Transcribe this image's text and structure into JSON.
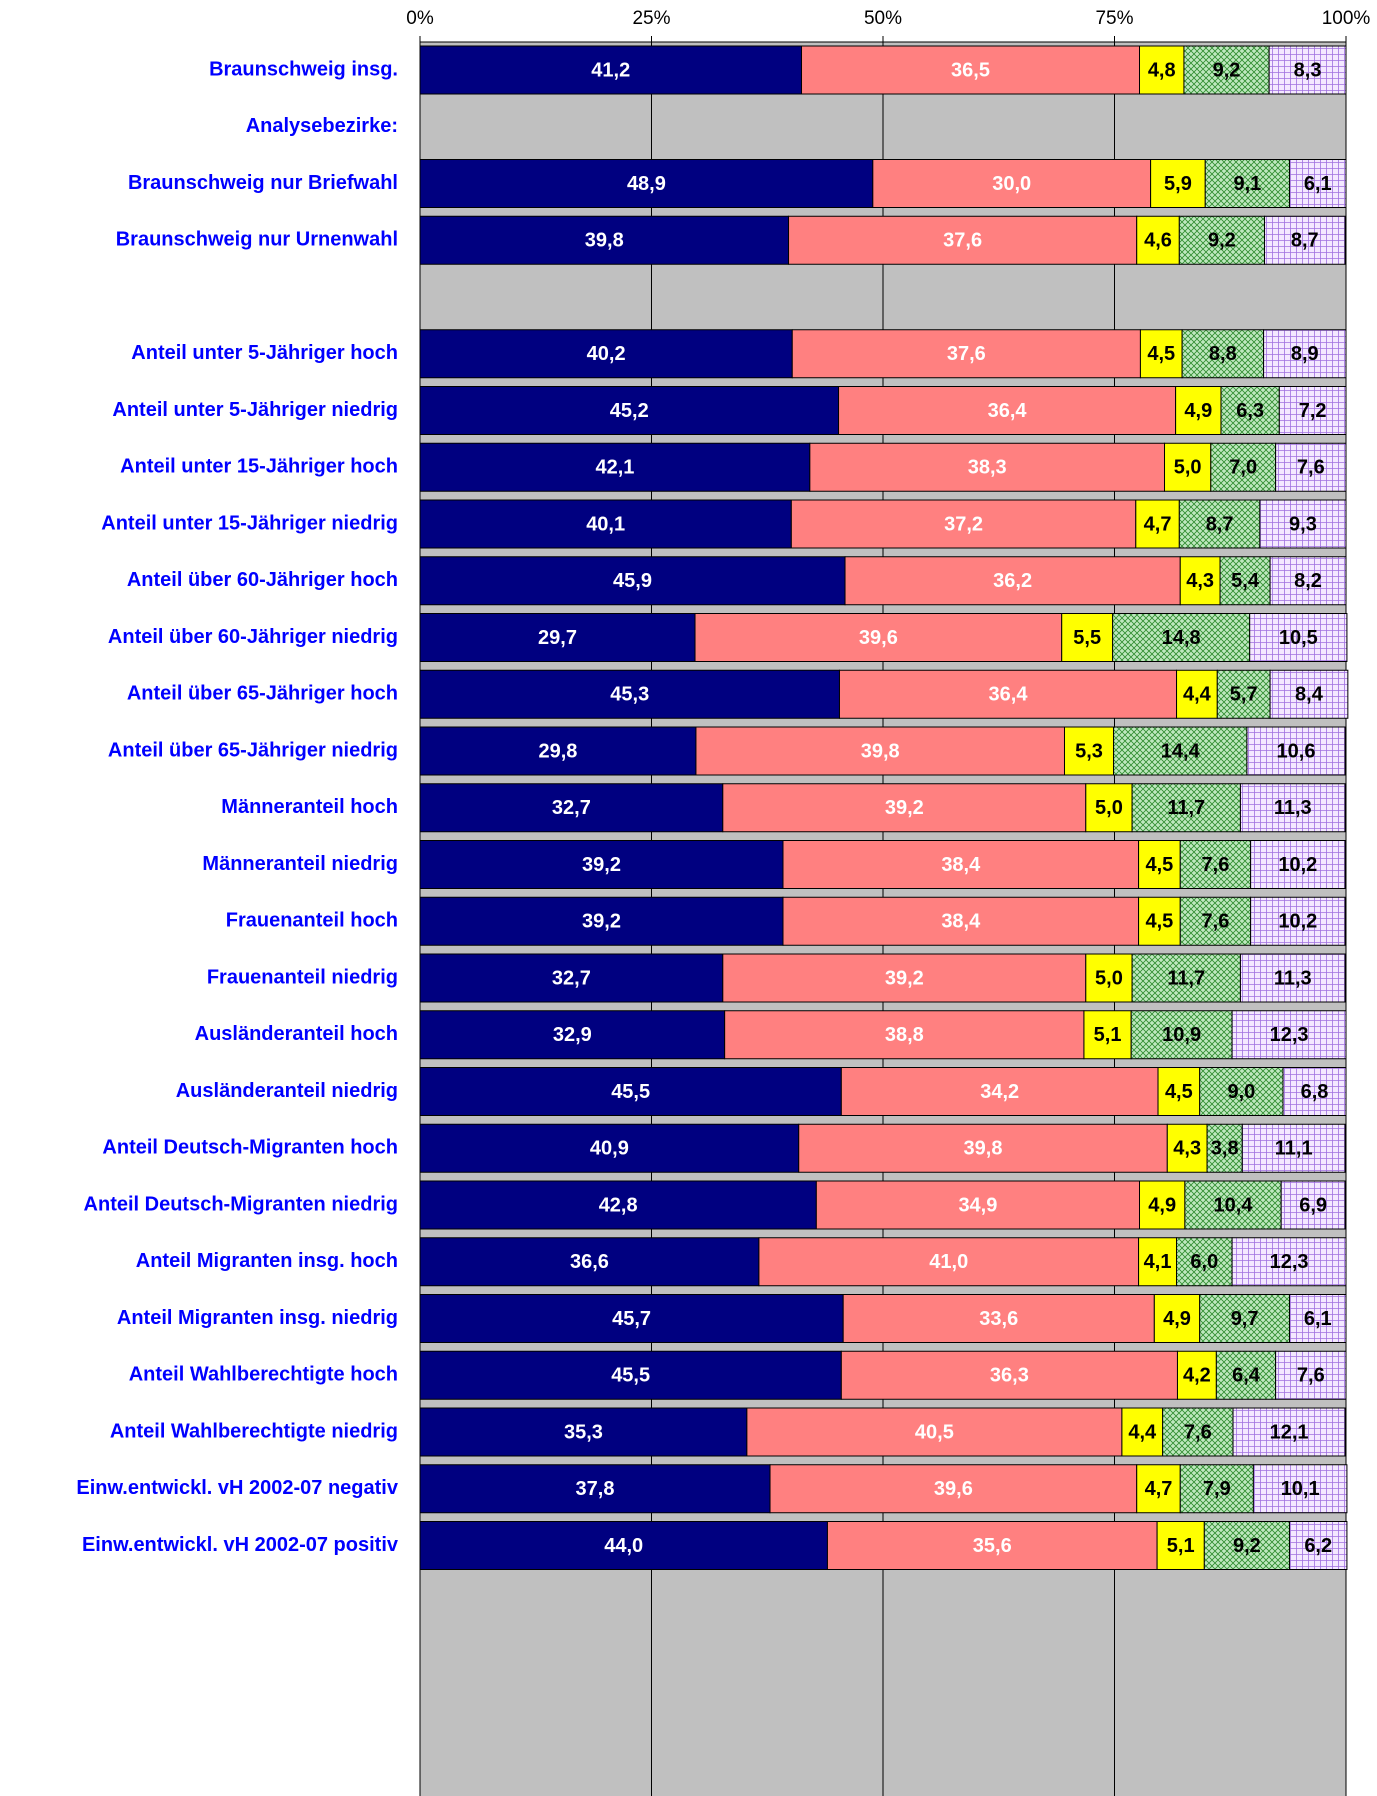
{
  "chart_data": {
    "type": "stacked_bar_horizontal",
    "categories": [
      "Braunschweig insg.",
      "Analysebezirke:",
      "Braunschweig nur Briefwahl",
      "Braunschweig nur Urnenwahl",
      null,
      "Anteil unter 5-Jähriger hoch",
      "Anteil unter 5-Jähriger niedrig",
      "Anteil unter 15-Jähriger hoch",
      "Anteil unter 15-Jähriger niedrig",
      "Anteil über 60-Jähriger hoch",
      "Anteil über 60-Jähriger niedrig",
      "Anteil über 65-Jähriger hoch",
      "Anteil über 65-Jähriger niedrig",
      "Männeranteil hoch",
      "Männeranteil niedrig",
      "Frauenanteil hoch",
      "Frauenanteil niedrig",
      "Ausländeranteil hoch",
      "Ausländeranteil niedrig",
      "Anteil Deutsch-Migranten hoch",
      "Anteil Deutsch-Migranten niedrig",
      "Anteil Migranten insg. hoch",
      "Anteil Migranten insg. niedrig",
      "Anteil Wahlberechtigte hoch",
      "Anteil Wahlberechtigte niedrig",
      "Einw.entwickl. vH 2002-07 negativ",
      "Einw.entwickl. vH 2002-07 positiv"
    ],
    "series": [
      {
        "color": "#000080",
        "label_color": "#ffffff",
        "pattern": "none",
        "values": [
          41.2,
          null,
          48.9,
          39.8,
          null,
          40.2,
          45.2,
          42.1,
          40.1,
          45.9,
          29.7,
          45.3,
          29.8,
          32.7,
          39.2,
          39.2,
          32.7,
          32.9,
          45.5,
          40.9,
          42.8,
          36.6,
          45.7,
          45.5,
          35.3,
          37.8,
          44.0
        ],
        "value_labels": [
          "41,2",
          null,
          "48,9",
          "39,8",
          null,
          "40,2",
          "45,2",
          "42,1",
          "40,1",
          "45,9",
          "29,7",
          "45,3",
          "29,8",
          "32,7",
          "39,2",
          "39,2",
          "32,7",
          "32,9",
          "45,5",
          "40,9",
          "42,8",
          "36,6",
          "45,7",
          "45,5",
          "35,3",
          "37,8",
          "44,0"
        ]
      },
      {
        "color": "#ff8080",
        "label_color": "#ffffff",
        "pattern": "none",
        "values": [
          36.5,
          null,
          30.0,
          37.6,
          null,
          37.6,
          36.4,
          38.3,
          37.2,
          36.2,
          39.6,
          36.4,
          39.8,
          39.2,
          38.4,
          38.4,
          39.2,
          38.8,
          34.2,
          39.8,
          34.9,
          41.0,
          33.6,
          36.3,
          40.5,
          39.6,
          35.6
        ],
        "value_labels": [
          "36,5",
          null,
          "30,0",
          "37,6",
          null,
          "37,6",
          "36,4",
          "38,3",
          "37,2",
          "36,2",
          "39,6",
          "36,4",
          "39,8",
          "39,2",
          "38,4",
          "38,4",
          "39,2",
          "38,8",
          "34,2",
          "39,8",
          "34,9",
          "41,0",
          "33,6",
          "36,3",
          "40,5",
          "39,6",
          "35,6"
        ]
      },
      {
        "color": "#ffff00",
        "label_color": "#000000",
        "pattern": "none",
        "values": [
          4.8,
          null,
          5.9,
          4.6,
          null,
          4.5,
          4.9,
          5.0,
          4.7,
          4.3,
          5.5,
          4.4,
          5.3,
          5.0,
          4.5,
          4.5,
          5.0,
          5.1,
          4.5,
          4.3,
          4.9,
          4.1,
          4.9,
          4.2,
          4.4,
          4.7,
          5.1
        ],
        "value_labels": [
          "4,8",
          null,
          "5,9",
          "4,6",
          null,
          "4,5",
          "4,9",
          "5,0",
          "4,7",
          "4,3",
          "5,5",
          "4,4",
          "5,3",
          "5,0",
          "4,5",
          "4,5",
          "5,0",
          "5,1",
          "4,5",
          "4,3",
          "4,9",
          "4,1",
          "4,9",
          "4,2",
          "4,4",
          "4,7",
          "5,1"
        ]
      },
      {
        "color": "#bfe8bf",
        "label_color": "#000000",
        "pattern": "crosshatch",
        "values": [
          9.2,
          null,
          9.1,
          9.2,
          null,
          8.8,
          6.3,
          7.0,
          8.7,
          5.4,
          14.8,
          5.7,
          14.4,
          11.7,
          7.6,
          7.6,
          11.7,
          10.9,
          9.0,
          3.8,
          10.4,
          6.0,
          9.7,
          6.4,
          7.6,
          7.9,
          9.2
        ],
        "value_labels": [
          "9,2",
          null,
          "9,1",
          "9,2",
          null,
          "8,8",
          "6,3",
          "7,0",
          "8,7",
          "5,4",
          "14,8",
          "5,7",
          "14,4",
          "11,7",
          "7,6",
          "7,6",
          "11,7",
          "10,9",
          "9,0",
          "3,8",
          "10,4",
          "6,0",
          "9,7",
          "6,4",
          "7,6",
          "7,9",
          "9,2"
        ]
      },
      {
        "color": "#f4e8ff",
        "label_color": "#000000",
        "pattern": "grid",
        "values": [
          8.3,
          null,
          6.1,
          8.7,
          null,
          8.9,
          7.2,
          7.6,
          9.3,
          8.2,
          10.5,
          8.4,
          10.6,
          11.3,
          10.2,
          10.2,
          11.3,
          12.3,
          6.8,
          11.1,
          6.9,
          12.3,
          6.1,
          7.6,
          12.1,
          10.1,
          6.2
        ],
        "value_labels": [
          "8,3",
          null,
          "6,1",
          "8,7",
          null,
          "8,9",
          "7,2",
          "7,6",
          "9,3",
          "8,2",
          "10,5",
          "8,4",
          "10,6",
          "11,3",
          "10,2",
          "10,2",
          "11,3",
          "12,3",
          "6,8",
          "11,1",
          "6,9",
          "12,3",
          "6,1",
          "7,6",
          "12,1",
          "10,1",
          "6,2"
        ]
      }
    ],
    "xlim": [
      0,
      100
    ],
    "xticks": [
      {
        "value": 0,
        "label": "0%"
      },
      {
        "value": 25,
        "label": "25%"
      },
      {
        "value": 50,
        "label": "50%"
      },
      {
        "value": 75,
        "label": "75%"
      },
      {
        "value": 100,
        "label": "100%"
      }
    ],
    "grid": true,
    "background": "#c0c0c0",
    "category_color": "#0000ff"
  }
}
